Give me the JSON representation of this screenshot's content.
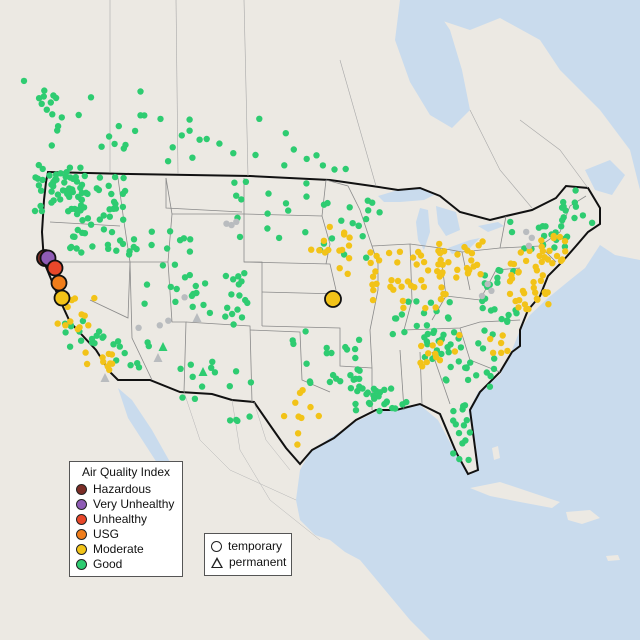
{
  "legend": {
    "title": "Air Quality Index",
    "categories": [
      {
        "label": "Hazardous",
        "color": "#7b2d26"
      },
      {
        "label": "Very Unhealthy",
        "color": "#8e5bb5"
      },
      {
        "label": "Unhealthy",
        "color": "#e8472a"
      },
      {
        "label": "USG",
        "color": "#f07d1a"
      },
      {
        "label": "Moderate",
        "color": "#f2c318"
      },
      {
        "label": "Good",
        "color": "#2ecc71"
      }
    ]
  },
  "shape_legend": {
    "temporary": "temporary",
    "permanent": "permanent"
  },
  "colors": {
    "ocean": "#c9dbed",
    "land": "#ece9e3",
    "no_data": "#b9bcbf"
  }
}
